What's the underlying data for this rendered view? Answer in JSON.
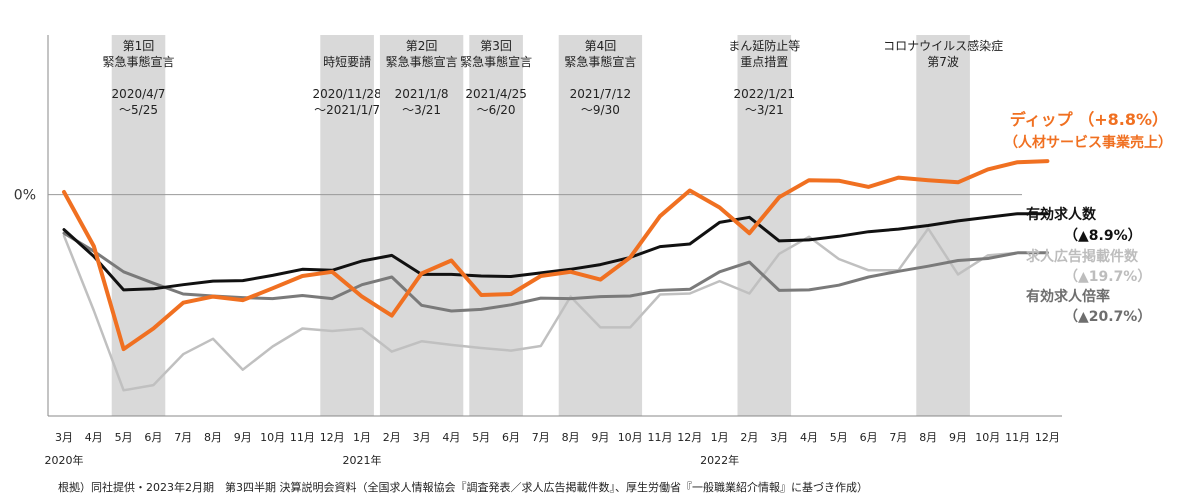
{
  "chart_data": {
    "type": "line",
    "y_reference_label": "0%",
    "x": [
      "3月",
      "4月",
      "5月",
      "6月",
      "7月",
      "8月",
      "9月",
      "10月",
      "11月",
      "12月",
      "1月",
      "2月",
      "3月",
      "4月",
      "5月",
      "6月",
      "7月",
      "8月",
      "9月",
      "10月",
      "11月",
      "12月",
      "1月",
      "2月",
      "3月",
      "4月",
      "5月",
      "6月",
      "7月",
      "8月",
      "9月",
      "10月",
      "11月",
      "12月"
    ],
    "year_labels": [
      {
        "text": "2020年",
        "index": 0
      },
      {
        "text": "2021年",
        "index": 10
      },
      {
        "text": "2022年",
        "index": 22
      }
    ],
    "bands": [
      {
        "start": 2,
        "end": 3,
        "lines": [
          "第1回",
          "緊急事態宣言",
          "",
          "2020/4/7",
          "～5/25"
        ]
      },
      {
        "start": 9,
        "end": 10,
        "lines": [
          "",
          "時短要請",
          "",
          "2020/11/28",
          "～2021/1/7"
        ]
      },
      {
        "start": 11,
        "end": 13,
        "lines": [
          "第2回",
          "緊急事態宣言",
          "",
          "2021/1/8",
          "～3/21"
        ]
      },
      {
        "start": 14,
        "end": 15,
        "lines": [
          "第3回",
          "緊急事態宣言",
          "",
          "2021/4/25",
          "～6/20"
        ]
      },
      {
        "start": 17,
        "end": 19,
        "lines": [
          "第4回",
          "緊急事態宣言",
          "",
          "2021/7/12",
          "～9/30"
        ]
      },
      {
        "start": 23,
        "end": 24,
        "lines": [
          "まん延防止等",
          "重点措置",
          "",
          "2022/1/21",
          "～3/21"
        ]
      },
      {
        "start": 29,
        "end": 30,
        "lines": [
          "コロナウイルス感染症",
          "第7波"
        ]
      }
    ],
    "series": [
      {
        "name": "ディップ （+8.8%）",
        "subname": "（人材サービス事業売上）",
        "color": "#f07021",
        "values": [
          0.5,
          -10,
          -30,
          -26,
          -21,
          -19.8,
          -20.5,
          -18.2,
          -15.8,
          -15,
          -19.8,
          -23.5,
          -15.3,
          -12.8,
          -19.5,
          -19.3,
          -15.8,
          -15,
          -16.5,
          -12.2,
          -4.2,
          0.8,
          -2.5,
          -7.5,
          -0.5,
          2.8,
          2.7,
          1.5,
          3.3,
          2.8,
          2.4,
          4.9,
          6.3,
          6.5
        ]
      },
      {
        "name": "有効求人数",
        "subname": "（▲8.9%）",
        "color": "#111111",
        "values": [
          -6.8,
          -12,
          -18.5,
          -18.3,
          -17.5,
          -16.8,
          -16.7,
          -15.7,
          -14.5,
          -14.7,
          -12.9,
          -11.8,
          -15.5,
          -15.5,
          -15.8,
          -15.9,
          -15.2,
          -14.5,
          -13.6,
          -12.2,
          -10.1,
          -9.6,
          -5.4,
          -4.4,
          -9,
          -8.8,
          -8.1,
          -7.2,
          -6.7,
          -6,
          -5.1,
          -4.4,
          -3.7,
          -3.7
        ]
      },
      {
        "name": "求人広告掲載件数",
        "subname": "（▲19.7%）",
        "color": "#c0c0c0",
        "values": [
          -8,
          -22.5,
          -38,
          -37,
          -31,
          -28,
          -34,
          -29.5,
          -26,
          -26.5,
          -26,
          -30.5,
          -28.5,
          -29.2,
          -29.8,
          -30.3,
          -29.4,
          -19.8,
          -25.8,
          -25.8,
          -19.4,
          -19.2,
          -16.8,
          -19.2,
          -11.5,
          -8.2,
          -12.5,
          -14.7,
          -14.7,
          -6.6,
          -15.5,
          -11.8,
          -11.3,
          -11.3
        ]
      },
      {
        "name": "有効求人倍率",
        "subname": "（▲20.7%）",
        "color": "#7a7a7a",
        "values": [
          -7.5,
          -11,
          -15,
          -17.2,
          -19.3,
          -19.7,
          -20,
          -20.2,
          -19.6,
          -20.2,
          -17.5,
          -16,
          -21.5,
          -22.6,
          -22.3,
          -21.4,
          -20.1,
          -20.2,
          -19.8,
          -19.7,
          -18.6,
          -18.4,
          -15,
          -13.1,
          -18.6,
          -18.5,
          -17.6,
          -16,
          -14.9,
          -13.9,
          -12.8,
          -12.4,
          -11.3,
          -11.3
        ]
      }
    ],
    "ylim": [
      -43,
      31
    ],
    "grid": false,
    "legend": "right"
  },
  "source": "根拠）同社提供・2023年2月期　第3四半期 決算説明会資料（全国求人情報協会『調査発表／求人広告掲載件数』、厚生労働省『一般職業紹介情報』に基づき作成）"
}
